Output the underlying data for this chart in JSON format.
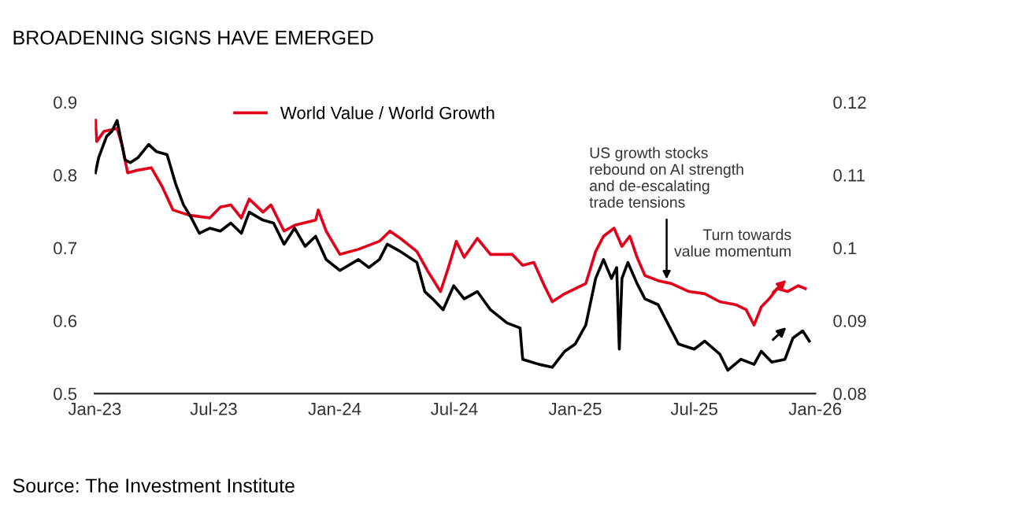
{
  "chart_data": {
    "type": "line",
    "title": "BROADENING SIGNS HAVE EMERGED",
    "series": [
      {
        "name": "World Value / World Growth",
        "color": "#e2001a",
        "x": [
          "2023-01-02",
          "2023-01-04",
          "2023-01-15",
          "2023-02-04",
          "2023-02-12",
          "2023-02-20",
          "2023-03-04",
          "2023-03-28",
          "2023-04-13",
          "2023-04-30",
          "2023-05-24",
          "2023-06-25",
          "2023-07-11",
          "2023-07-27",
          "2023-08-12",
          "2023-08-24",
          "2023-09-14",
          "2023-09-26",
          "2023-10-16",
          "2023-11-01",
          "2023-12-03",
          "2023-12-07",
          "2023-12-19",
          "2024-01-09",
          "2024-02-06",
          "2024-03-09",
          "2024-03-25",
          "2024-04-10",
          "2024-05-05",
          "2024-05-21",
          "2024-06-10",
          "2024-06-22",
          "2024-07-04",
          "2024-07-16",
          "2024-08-05",
          "2024-08-25",
          "2024-09-27",
          "2024-10-13",
          "2024-10-30",
          "2024-11-15",
          "2024-11-27",
          "2024-12-16",
          "2025-01-01",
          "2025-01-17",
          "2025-02-01",
          "2025-02-13",
          "2025-03-01",
          "2025-03-13",
          "2025-03-25",
          "2025-04-05",
          "2025-04-17",
          "2025-05-07",
          "2025-05-27",
          "2025-06-23",
          "2025-07-17",
          "2025-08-09",
          "2025-09-02",
          "2025-09-18",
          "2025-09-30",
          "2025-10-11",
          "2025-10-23",
          "2025-11-04",
          "2025-11-20",
          "2025-12-06",
          "2025-12-17"
        ],
        "values": [
          0.875,
          0.846,
          0.86,
          0.864,
          0.839,
          0.803,
          0.806,
          0.81,
          0.785,
          0.752,
          0.745,
          0.741,
          0.756,
          0.759,
          0.741,
          0.767,
          0.749,
          0.759,
          0.723,
          0.731,
          0.738,
          0.752,
          0.723,
          0.691,
          0.698,
          0.709,
          0.723,
          0.713,
          0.695,
          0.669,
          0.64,
          0.673,
          0.709,
          0.687,
          0.713,
          0.691,
          0.691,
          0.676,
          0.68,
          0.648,
          0.626,
          0.637,
          0.644,
          0.651,
          0.695,
          0.716,
          0.727,
          0.702,
          0.716,
          0.687,
          0.662,
          0.655,
          0.651,
          0.64,
          0.637,
          0.626,
          0.622,
          0.615,
          0.594,
          0.619,
          0.63,
          0.644,
          0.64,
          0.648,
          0.644
        ]
      },
      {
        "color": "#000000",
        "axis": "y2",
        "x": [
          "2023-01-02",
          "2023-01-07",
          "2023-01-19",
          "2023-01-27",
          "2023-02-04",
          "2023-02-16",
          "2023-02-24",
          "2023-03-08",
          "2023-03-24",
          "2023-04-05",
          "2023-04-21",
          "2023-05-04",
          "2023-05-16",
          "2023-05-28",
          "2023-06-09",
          "2023-06-25",
          "2023-07-11",
          "2023-07-27",
          "2023-08-12",
          "2023-08-24",
          "2023-09-14",
          "2023-09-30",
          "2023-10-16",
          "2023-11-01",
          "2023-11-17",
          "2023-12-03",
          "2023-12-19",
          "2024-01-09",
          "2024-02-06",
          "2024-02-22",
          "2024-03-09",
          "2024-03-21",
          "2024-04-10",
          "2024-05-05",
          "2024-05-17",
          "2024-05-29",
          "2024-06-14",
          "2024-06-30",
          "2024-07-16",
          "2024-08-05",
          "2024-08-25",
          "2024-09-19",
          "2024-10-09",
          "2024-10-13",
          "2024-11-07",
          "2024-11-27",
          "2024-12-16",
          "2025-01-01",
          "2025-01-17",
          "2025-02-01",
          "2025-02-13",
          "2025-02-25",
          "2025-03-05",
          "2025-03-09",
          "2025-03-13",
          "2025-03-22",
          "2025-04-05",
          "2025-04-17",
          "2025-05-07",
          "2025-05-23",
          "2025-06-07",
          "2025-07-01",
          "2025-07-17",
          "2025-08-09",
          "2025-08-21",
          "2025-09-10",
          "2025-09-30",
          "2025-10-11",
          "2025-10-27",
          "2025-11-16",
          "2025-11-28",
          "2025-12-13",
          "2025-12-23"
        ],
        "values": [
          0.1103,
          0.1124,
          0.1153,
          0.116,
          0.1175,
          0.1121,
          0.1117,
          0.1124,
          0.1142,
          0.1132,
          0.1128,
          0.1088,
          0.1059,
          0.1041,
          0.102,
          0.1027,
          0.1023,
          0.1034,
          0.102,
          0.1049,
          0.1038,
          0.1034,
          0.1005,
          0.1027,
          0.1002,
          0.1016,
          0.0984,
          0.0969,
          0.0984,
          0.0973,
          0.0984,
          0.1005,
          0.0995,
          0.098,
          0.094,
          0.093,
          0.0915,
          0.0948,
          0.093,
          0.094,
          0.0915,
          0.0897,
          0.089,
          0.0847,
          0.084,
          0.0836,
          0.0858,
          0.0868,
          0.0894,
          0.0958,
          0.0984,
          0.0958,
          0.0973,
          0.0861,
          0.0958,
          0.098,
          0.0951,
          0.093,
          0.0922,
          0.0894,
          0.0868,
          0.0861,
          0.0872,
          0.0854,
          0.0832,
          0.0847,
          0.084,
          0.0858,
          0.0843,
          0.0847,
          0.0876,
          0.0886,
          0.0872
        ]
      }
    ],
    "xlim": [
      "2023-01-01",
      "2026-01-01"
    ],
    "xticks": [
      {
        "value": "2023-01-01",
        "label": "Jan-23"
      },
      {
        "value": "2023-07-01",
        "label": "Jul-23"
      },
      {
        "value": "2024-01-01",
        "label": "Jan-24"
      },
      {
        "value": "2024-07-01",
        "label": "Jul-24"
      },
      {
        "value": "2025-01-01",
        "label": "Jan-25"
      },
      {
        "value": "2025-07-01",
        "label": "Jul-25"
      },
      {
        "value": "2026-01-01",
        "label": "Jan-26"
      }
    ],
    "ylim": [
      0.5,
      0.9
    ],
    "yticks": [
      0.5,
      0.6,
      0.7,
      0.8,
      0.9
    ],
    "y2lim": [
      0.08,
      0.12
    ],
    "y2ticks": [
      0.08,
      0.09,
      0.1,
      0.11,
      0.12
    ],
    "grid": false,
    "legend": "top",
    "marker": "none",
    "line_style": "solid",
    "annotations": [
      {
        "text": "US growth stocks\nrebound on AI strength\nand de-escalating\ntrade tensions",
        "x": "2025-05-20",
        "y": 0.651
      },
      {
        "text": "Turn towards\nvalue momentum",
        "x": "2025-11-01",
        "y": 0.655
      },
      "Source: The Investment Institute"
    ]
  }
}
